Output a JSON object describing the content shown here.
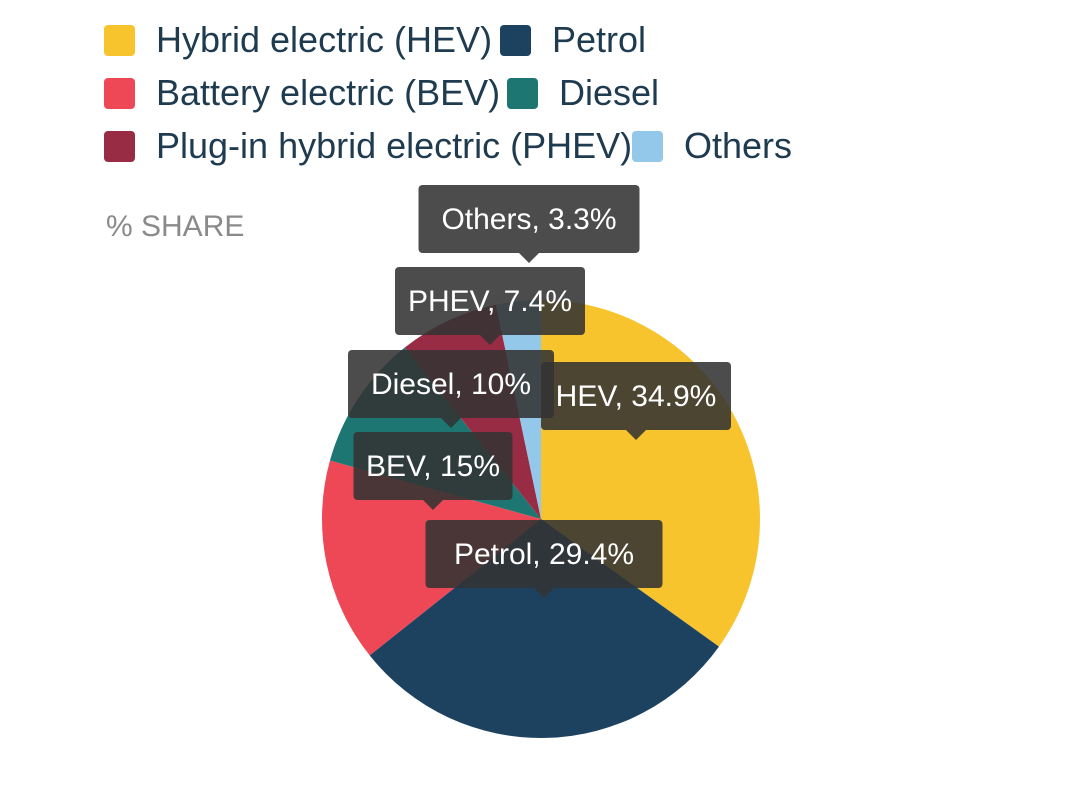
{
  "chart_data": {
    "type": "pie",
    "title": "",
    "value_label": "% SHARE",
    "legend_placement": "top",
    "series": [
      {
        "name": "Hybrid electric (HEV)",
        "short": "HEV",
        "value": 34.9,
        "color": "#F8C42D"
      },
      {
        "name": "Petrol",
        "short": "Petrol",
        "value": 29.4,
        "color": "#1D4260"
      },
      {
        "name": "Battery electric (BEV)",
        "short": "BEV",
        "value": 15,
        "color": "#EE4856"
      },
      {
        "name": "Diesel",
        "short": "Diesel",
        "value": 10,
        "color": "#1E7673"
      },
      {
        "name": "Plug-in hybrid electric (PHEV)",
        "short": "PHEV",
        "value": 7.4,
        "color": "#982C44"
      },
      {
        "name": "Others",
        "short": "Others",
        "value": 3.3,
        "color": "#93C8EA"
      }
    ],
    "tooltip_labels": [
      "HEV, 34.9%",
      "Petrol, 29.4%",
      "BEV, 15%",
      "Diesel, 10%",
      "PHEV, 7.4%",
      "Others, 3.3%"
    ]
  }
}
